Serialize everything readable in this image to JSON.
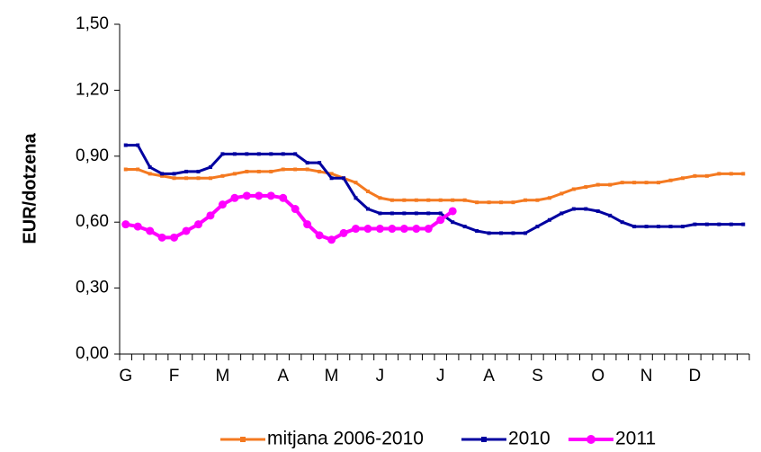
{
  "chart_data": {
    "type": "line",
    "y_label": "EUR/dotzena",
    "categories": [
      "G",
      null,
      null,
      null,
      "F",
      null,
      null,
      null,
      "M",
      null,
      null,
      null,
      null,
      "A",
      null,
      null,
      null,
      "M",
      null,
      null,
      null,
      "J",
      null,
      null,
      null,
      null,
      "J",
      null,
      null,
      null,
      "A",
      null,
      null,
      null,
      "S",
      null,
      null,
      null,
      null,
      "O",
      null,
      null,
      null,
      "N",
      null,
      null,
      null,
      "D",
      null,
      null,
      null,
      null
    ],
    "ylim": [
      0,
      1.5
    ],
    "yticks": [
      {
        "value": 0,
        "label": "0,00"
      },
      {
        "value": 0.3,
        "label": "0,30"
      },
      {
        "value": 0.6,
        "label": "0,60"
      },
      {
        "value": 0.9,
        "label": "0,90"
      },
      {
        "value": 1.2,
        "label": "1,20"
      },
      {
        "value": 1.5,
        "label": "1,50"
      }
    ],
    "legend": "bottom",
    "series": [
      {
        "name": "mitjana 2006-2010",
        "color": "#f47920",
        "marker": "square",
        "values": [
          0.84,
          0.84,
          0.82,
          0.81,
          0.8,
          0.8,
          0.8,
          0.8,
          0.81,
          0.82,
          0.83,
          0.83,
          0.83,
          0.84,
          0.84,
          0.84,
          0.83,
          0.82,
          0.8,
          0.78,
          0.74,
          0.71,
          0.7,
          0.7,
          0.7,
          0.7,
          0.7,
          0.7,
          0.7,
          0.69,
          0.69,
          0.69,
          0.69,
          0.7,
          0.7,
          0.71,
          0.73,
          0.75,
          0.76,
          0.77,
          0.77,
          0.78,
          0.78,
          0.78,
          0.78,
          0.79,
          0.8,
          0.81,
          0.81,
          0.82,
          0.82,
          0.82
        ]
      },
      {
        "name": "2010",
        "color": "#0000a0",
        "marker": "square",
        "values": [
          0.95,
          0.95,
          0.85,
          0.82,
          0.82,
          0.83,
          0.83,
          0.85,
          0.91,
          0.91,
          0.91,
          0.91,
          0.91,
          0.91,
          0.91,
          0.87,
          0.87,
          0.8,
          0.8,
          0.71,
          0.66,
          0.64,
          0.64,
          0.64,
          0.64,
          0.64,
          0.64,
          0.6,
          0.58,
          0.56,
          0.55,
          0.55,
          0.55,
          0.55,
          0.58,
          0.61,
          0.64,
          0.66,
          0.66,
          0.65,
          0.63,
          0.6,
          0.58,
          0.58,
          0.58,
          0.58,
          0.58,
          0.59,
          0.59,
          0.59,
          0.59,
          0.59
        ]
      },
      {
        "name": "2011",
        "color": "#ff00ff",
        "marker": "circle",
        "values": [
          0.59,
          0.58,
          0.56,
          0.53,
          0.53,
          0.56,
          0.59,
          0.63,
          0.68,
          0.71,
          0.72,
          0.72,
          0.72,
          0.71,
          0.66,
          0.59,
          0.54,
          0.52,
          0.55,
          0.57,
          0.57,
          0.57,
          0.57,
          0.57,
          0.57,
          0.57,
          0.61,
          0.65,
          null,
          null,
          null,
          null,
          null,
          null,
          null,
          null,
          null,
          null,
          null,
          null,
          null,
          null,
          null,
          null,
          null,
          null,
          null,
          null,
          null,
          null,
          null,
          null
        ]
      }
    ]
  }
}
